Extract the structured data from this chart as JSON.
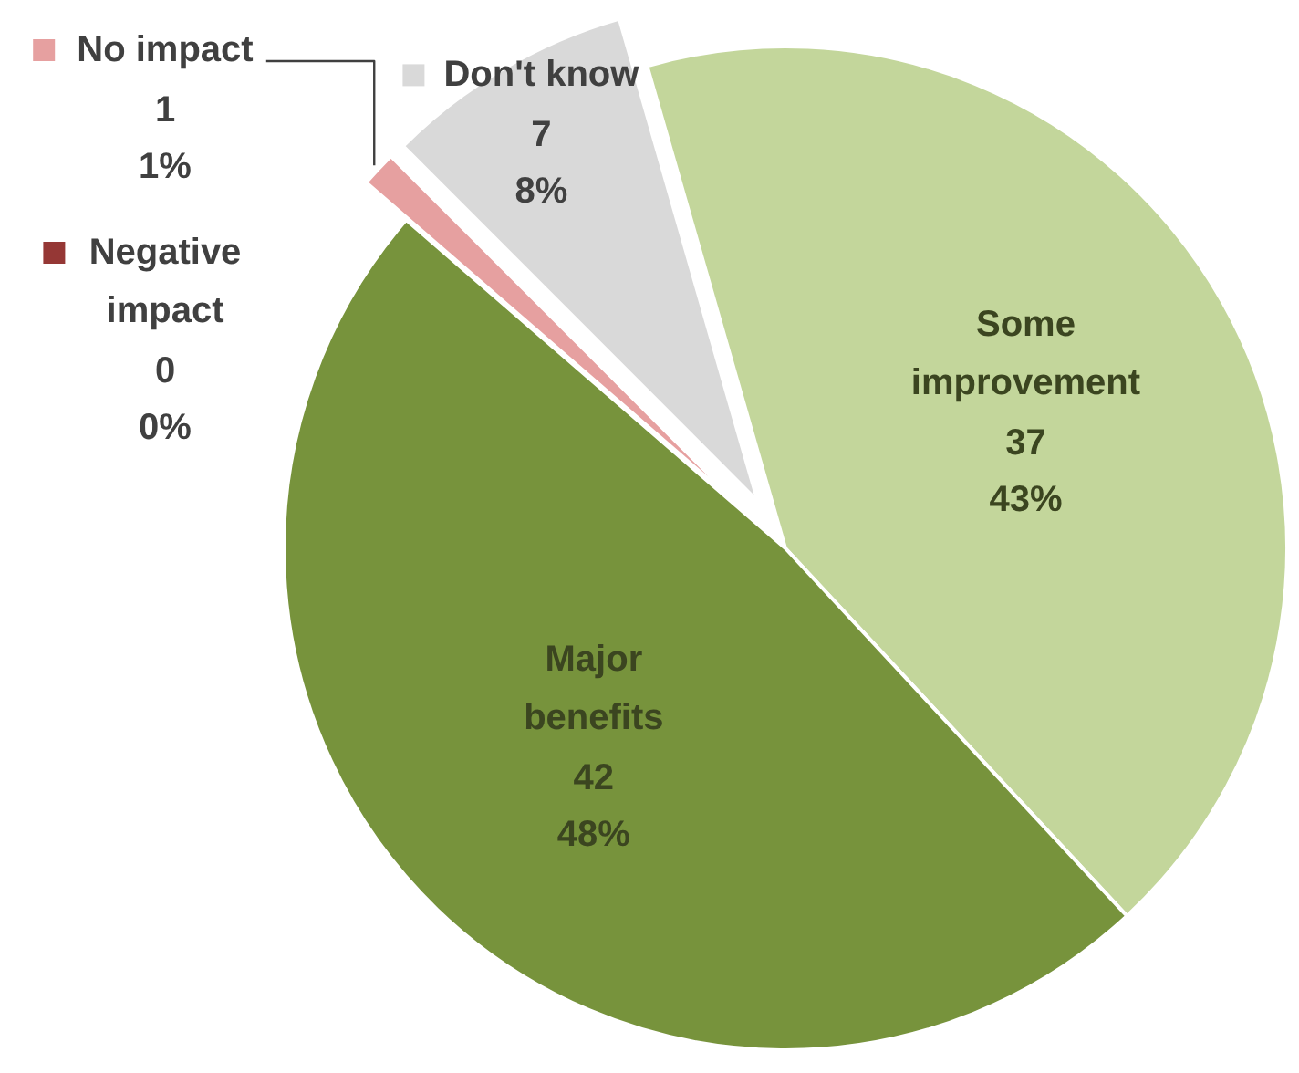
{
  "chart_data": {
    "type": "pie",
    "categories": [
      "Some improvement",
      "Major benefits",
      "Negative impact",
      "No impact",
      "Don't know"
    ],
    "values": [
      37,
      42,
      0,
      1,
      7
    ],
    "colors": [
      "#c3d69b",
      "#77933c",
      "#953735",
      "#e6a0a0",
      "#d9d9d9"
    ],
    "value_labels": [
      "37\n43%",
      "42\n48%",
      "0\n0%",
      "1\n1%",
      "7\n8%"
    ],
    "legend": "top left"
  }
}
